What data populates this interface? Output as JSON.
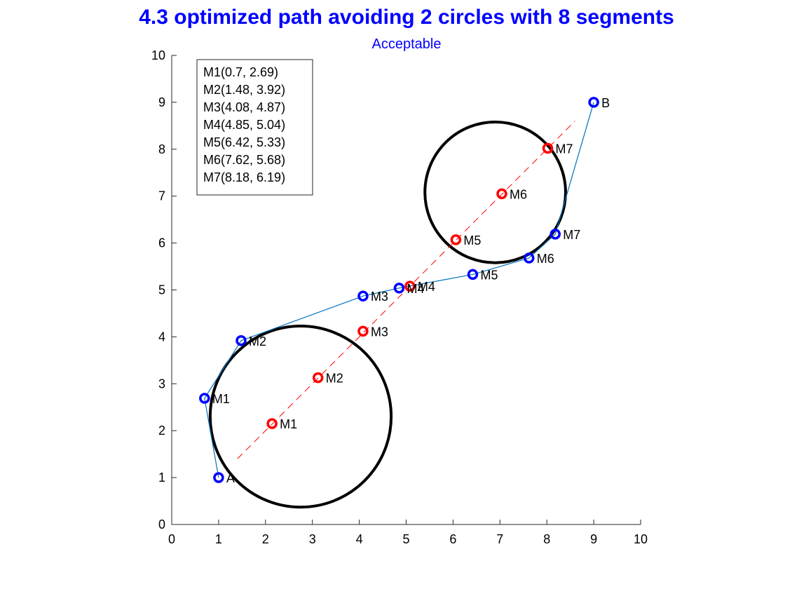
{
  "chart_data": {
    "type": "scatter",
    "title": "4.3 optimized path avoiding 2 circles with 8 segments",
    "subtitle": "Acceptable",
    "xlabel": "",
    "ylabel": "",
    "xlim": [
      0,
      10
    ],
    "ylim": [
      0,
      10
    ],
    "xticks": [
      "0",
      "1",
      "2",
      "3",
      "4",
      "5",
      "6",
      "7",
      "8",
      "9",
      "10"
    ],
    "yticks": [
      "0",
      "1",
      "2",
      "3",
      "4",
      "5",
      "6",
      "7",
      "8",
      "9",
      "10"
    ],
    "grid": false,
    "circles": [
      {
        "cx": 2.75,
        "cy": 2.3,
        "r": 1.93
      },
      {
        "cx": 6.9,
        "cy": 7.08,
        "r": 1.5
      }
    ],
    "start": {
      "label": "A",
      "x": 1,
      "y": 1
    },
    "end": {
      "label": "B",
      "x": 9,
      "y": 9
    },
    "straight_line": {
      "x": [
        1.4,
        8.6
      ],
      "y": [
        1.4,
        8.6
      ]
    },
    "straight_points": [
      {
        "label": "M1",
        "x": 2.14,
        "y": 2.15
      },
      {
        "label": "M2",
        "x": 3.12,
        "y": 3.13
      },
      {
        "label": "M3",
        "x": 4.08,
        "y": 4.12
      },
      {
        "label": "M4",
        "x": 5.08,
        "y": 5.08
      },
      {
        "label": "M5",
        "x": 6.06,
        "y": 6.07
      },
      {
        "label": "M6",
        "x": 7.04,
        "y": 7.05
      },
      {
        "label": "M7",
        "x": 8.02,
        "y": 8.02
      }
    ],
    "path_points": [
      {
        "label": "M1",
        "x": 0.7,
        "y": 2.69
      },
      {
        "label": "M2",
        "x": 1.48,
        "y": 3.92
      },
      {
        "label": "M3",
        "x": 4.08,
        "y": 4.87
      },
      {
        "label": "M4",
        "x": 4.85,
        "y": 5.04
      },
      {
        "label": "M5",
        "x": 6.42,
        "y": 5.33
      },
      {
        "label": "M6",
        "x": 7.62,
        "y": 5.68
      },
      {
        "label": "M7",
        "x": 8.18,
        "y": 6.19
      }
    ],
    "legend_box": [
      "M1(0.7, 2.69)",
      "M2(1.48, 3.92)",
      "M3(4.08, 4.87)",
      "M4(4.85, 5.04)",
      "M5(6.42, 5.33)",
      "M6(7.62, 5.68)",
      "M7(8.18, 6.19)"
    ],
    "colors": {
      "title": "#0000ff",
      "path_marker": "#0000ff",
      "straight_marker": "#ff0000",
      "path_line": "#0072bd",
      "straight_line": "#ff0000",
      "circle": "#000000"
    }
  }
}
